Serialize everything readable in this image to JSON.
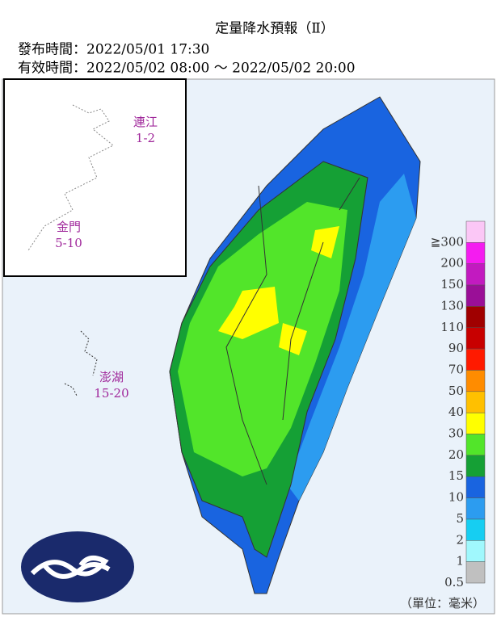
{
  "header": {
    "title": "定量降水預報（Ⅱ）",
    "issued": "發布時間：2022/05/01 17:30",
    "valid": "有效時間：2022/05/02 08:00 ～ 2022/05/02 20:00"
  },
  "regions": [
    {
      "name": "連江",
      "range": "1-2"
    },
    {
      "name": "金門",
      "range": "5-10"
    },
    {
      "name": "澎湖",
      "range": "15-20"
    }
  ],
  "legend": {
    "levels": [
      {
        "label": "≧300",
        "color": "#fbc7f6"
      },
      {
        "label": "200",
        "color": "#f41cf0"
      },
      {
        "label": "150",
        "color": "#c21ac0"
      },
      {
        "label": "130",
        "color": "#9a0f97"
      },
      {
        "label": "110",
        "color": "#a00000"
      },
      {
        "label": "90",
        "color": "#c80000"
      },
      {
        "label": "70",
        "color": "#ff1a00"
      },
      {
        "label": "50",
        "color": "#ff8c00"
      },
      {
        "label": "40",
        "color": "#ffc000"
      },
      {
        "label": "30",
        "color": "#ffff00"
      },
      {
        "label": "20",
        "color": "#52e52a"
      },
      {
        "label": "15",
        "color": "#15a035"
      },
      {
        "label": "10",
        "color": "#1964e0"
      },
      {
        "label": "5",
        "color": "#2c9cf0"
      },
      {
        "label": "2",
        "color": "#16cef2"
      },
      {
        "label": "1",
        "color": "#a0f8fd"
      },
      {
        "label": "0.5",
        "color": "#c0c0c0"
      }
    ],
    "unit": "（單位：毫米）"
  }
}
